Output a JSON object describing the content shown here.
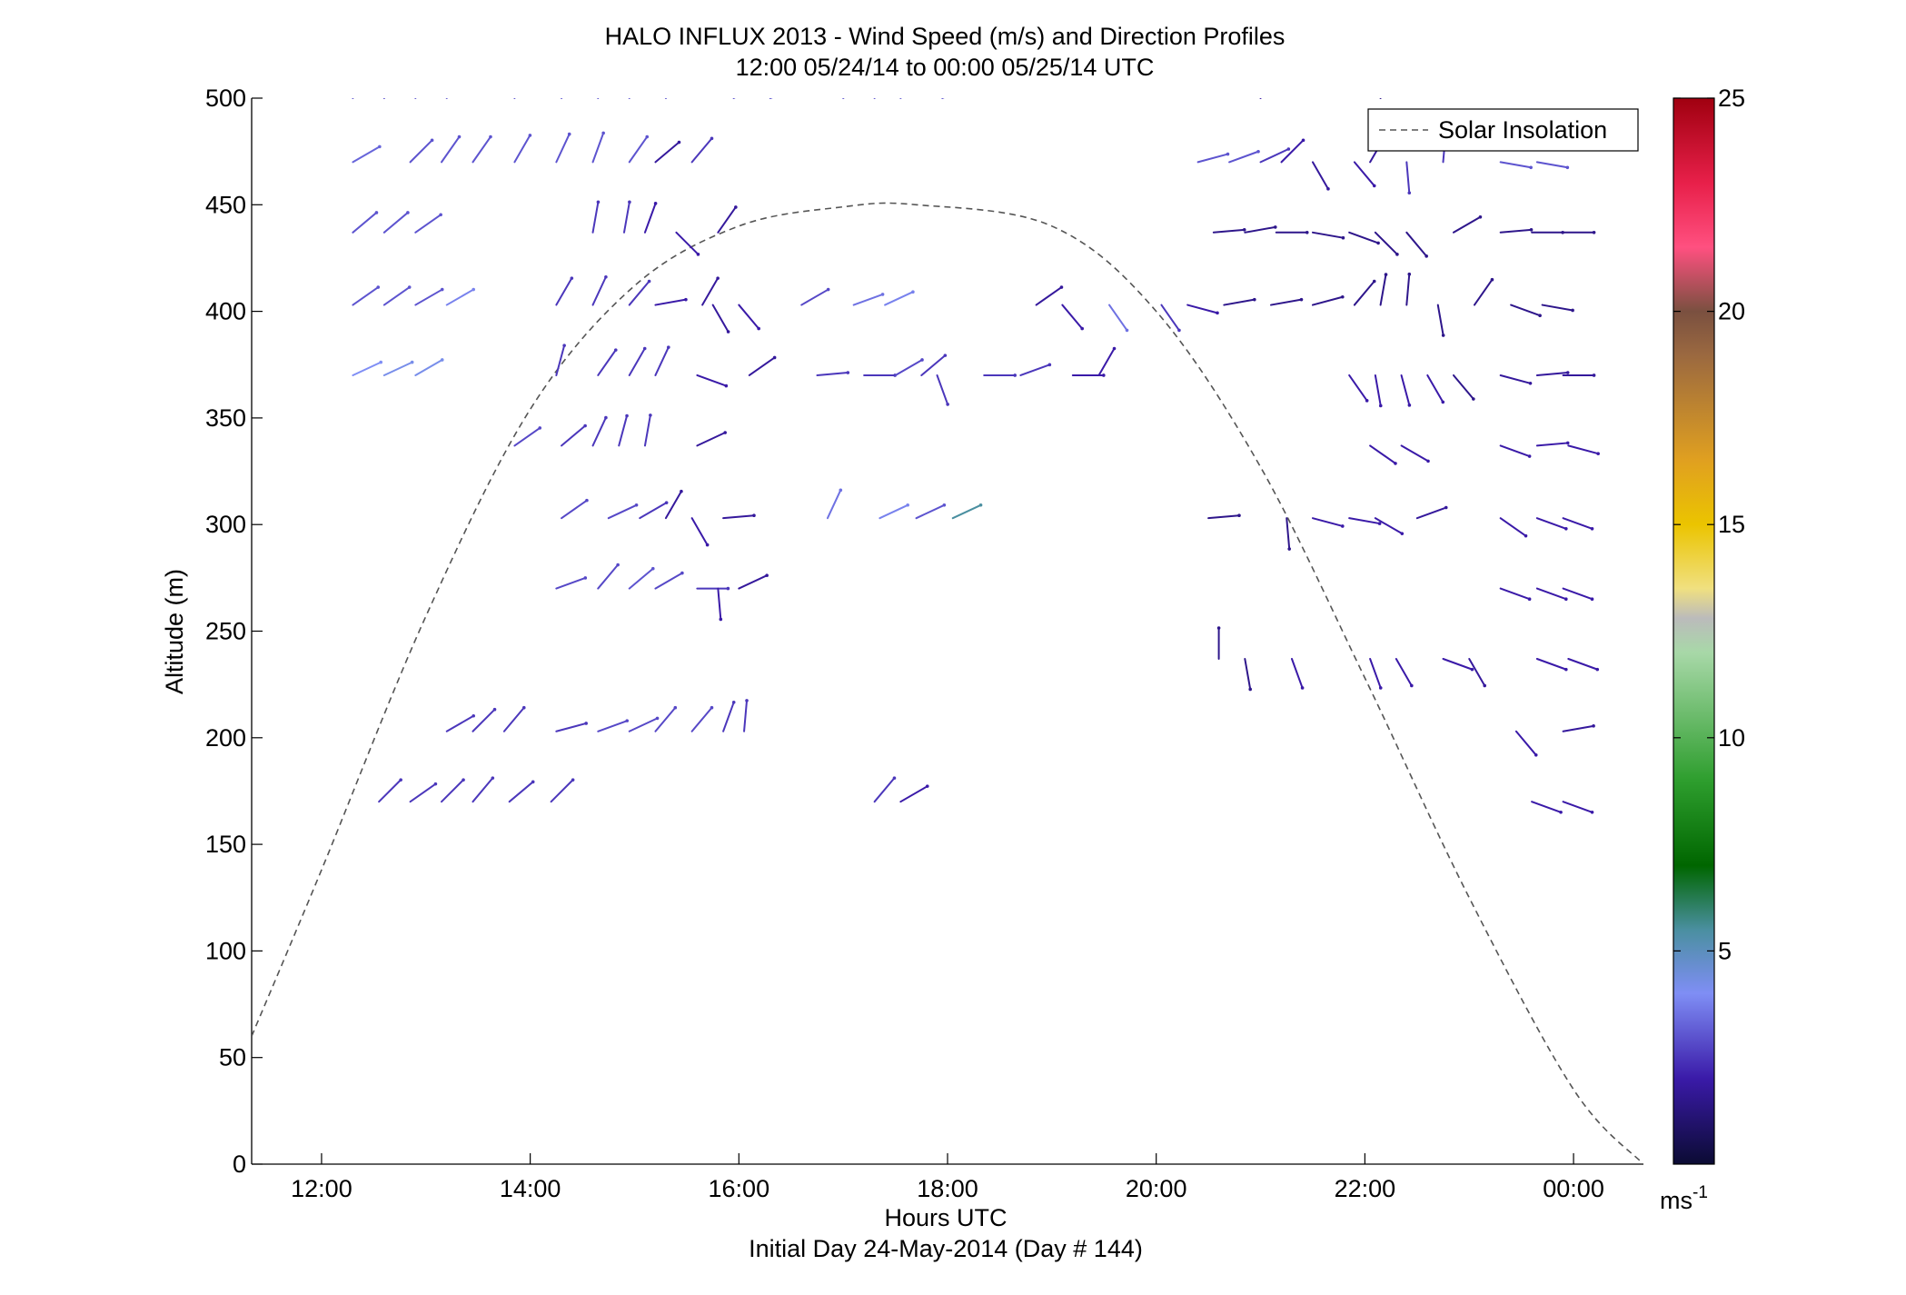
{
  "chart_data": {
    "type": "scatter",
    "title": "HALO INFLUX 2013 - Wind Speed (m/s) and Direction Profiles",
    "subtitle": "12:00 05/24/14 to 00:00 05/25/14  UTC",
    "xlabel": "Hours UTC",
    "xlabel2": "Initial Day 24-May-2014 (Day # 144)",
    "ylabel": "Altitude (m)",
    "xlim": [
      11.33,
      24.67
    ],
    "ylim": [
      0,
      500
    ],
    "x_ticks": [
      {
        "value": 12,
        "label": "12:00"
      },
      {
        "value": 14,
        "label": "14:00"
      },
      {
        "value": 16,
        "label": "16:00"
      },
      {
        "value": 18,
        "label": "18:00"
      },
      {
        "value": 20,
        "label": "20:00"
      },
      {
        "value": 22,
        "label": "22:00"
      },
      {
        "value": 24,
        "label": "00:00"
      }
    ],
    "y_ticks": [
      {
        "value": 0,
        "label": "0"
      },
      {
        "value": 50,
        "label": "50"
      },
      {
        "value": 100,
        "label": "100"
      },
      {
        "value": 150,
        "label": "150"
      },
      {
        "value": 200,
        "label": "200"
      },
      {
        "value": 250,
        "label": "250"
      },
      {
        "value": 300,
        "label": "300"
      },
      {
        "value": 350,
        "label": "350"
      },
      {
        "value": 400,
        "label": "400"
      },
      {
        "value": 450,
        "label": "450"
      },
      {
        "value": 500,
        "label": "500"
      }
    ],
    "legend": {
      "label": "Solar Insolation",
      "placement": "top-right"
    },
    "grid": false,
    "colorbar": {
      "range": [
        0,
        25
      ],
      "ticks": [
        {
          "value": 5,
          "label": "5"
        },
        {
          "value": 10,
          "label": "10"
        },
        {
          "value": 15,
          "label": "15"
        },
        {
          "value": 20,
          "label": "20"
        },
        {
          "value": 25,
          "label": "25"
        }
      ],
      "unit_label": "ms",
      "unit_exponent": "-1",
      "stops": [
        {
          "v": 0,
          "color": "#0b0b33"
        },
        {
          "v": 2,
          "color": "#3a1aa8"
        },
        {
          "v": 4,
          "color": "#7f8ef5"
        },
        {
          "v": 5.5,
          "color": "#4a8fa0"
        },
        {
          "v": 7,
          "color": "#006600"
        },
        {
          "v": 9,
          "color": "#2e9e2e"
        },
        {
          "v": 12,
          "color": "#a8d8a8"
        },
        {
          "v": 12.8,
          "color": "#bbbbbb"
        },
        {
          "v": 13.5,
          "color": "#f0e080"
        },
        {
          "v": 15,
          "color": "#ebc400"
        },
        {
          "v": 16.5,
          "color": "#e0a020"
        },
        {
          "v": 19,
          "color": "#9a6840"
        },
        {
          "v": 20,
          "color": "#7a5040"
        },
        {
          "v": 21.5,
          "color": "#ff5080"
        },
        {
          "v": 23,
          "color": "#e8204a"
        },
        {
          "v": 25,
          "color": "#a00010"
        }
      ]
    },
    "solar_insolation_curve": {
      "style": "dashed",
      "color": "#555555",
      "points": [
        [
          11.33,
          60
        ],
        [
          12.0,
          138
        ],
        [
          13.0,
          257
        ],
        [
          14.0,
          354
        ],
        [
          15.0,
          412
        ],
        [
          16.0,
          440
        ],
        [
          17.0,
          449
        ],
        [
          17.7,
          450
        ],
        [
          19.0,
          440
        ],
        [
          20.0,
          400
        ],
        [
          21.0,
          327
        ],
        [
          22.0,
          228
        ],
        [
          23.0,
          125
        ],
        [
          24.0,
          35
        ],
        [
          24.67,
          0
        ]
      ]
    },
    "wind_vectors": {
      "description_fields": [
        "hour",
        "altitude_m",
        "direction_deg",
        "speed_ms"
      ],
      "series": [
        [
          12.3,
          500,
          150,
          3.0
        ],
        [
          12.6,
          500,
          145,
          3.0
        ],
        [
          12.9,
          500,
          150,
          3.0
        ],
        [
          13.2,
          500,
          155,
          3.0
        ],
        [
          13.85,
          500,
          160,
          3.0
        ],
        [
          14.3,
          500,
          155,
          3.0
        ],
        [
          14.65,
          500,
          160,
          3.0
        ],
        [
          14.95,
          500,
          150,
          3.0
        ],
        [
          15.3,
          500,
          145,
          3.0
        ],
        [
          15.95,
          500,
          120,
          3.0
        ],
        [
          16.3,
          500,
          110,
          3.0
        ],
        [
          17.0,
          500,
          130,
          3.0
        ],
        [
          17.3,
          500,
          140,
          3.0
        ],
        [
          17.55,
          500,
          140,
          3.0
        ],
        [
          17.95,
          500,
          115,
          3.0
        ],
        [
          21.0,
          500,
          150,
          2.0
        ],
        [
          22.15,
          500,
          160,
          1.5
        ],
        [
          12.3,
          470,
          120,
          3.3
        ],
        [
          12.85,
          470,
          135,
          3.0
        ],
        [
          13.15,
          470,
          145,
          3.0
        ],
        [
          13.45,
          470,
          145,
          3.0
        ],
        [
          13.85,
          470,
          150,
          3.0
        ],
        [
          14.25,
          470,
          155,
          3.0
        ],
        [
          14.6,
          470,
          160,
          3.0
        ],
        [
          14.95,
          470,
          145,
          3.0
        ],
        [
          15.2,
          470,
          130,
          1.8
        ],
        [
          15.55,
          470,
          140,
          2.5
        ],
        [
          20.4,
          470,
          105,
          3.0
        ],
        [
          20.7,
          470,
          110,
          3.0
        ],
        [
          21.0,
          470,
          115,
          2.5
        ],
        [
          21.2,
          470,
          135,
          2.0
        ],
        [
          21.5,
          470,
          30,
          1.8
        ],
        [
          21.9,
          470,
          40,
          2.0
        ],
        [
          22.05,
          470,
          150,
          1.8
        ],
        [
          22.4,
          470,
          5,
          2.5
        ],
        [
          22.75,
          470,
          175,
          2.5
        ],
        [
          23.3,
          470,
          80,
          3.0
        ],
        [
          23.65,
          470,
          80,
          3.0
        ],
        [
          12.3,
          437,
          130,
          3.0
        ],
        [
          12.6,
          437,
          130,
          3.0
        ],
        [
          12.9,
          437,
          125,
          3.0
        ],
        [
          14.6,
          437,
          170,
          2.5
        ],
        [
          14.9,
          437,
          170,
          2.5
        ],
        [
          15.1,
          437,
          160,
          2.0
        ],
        [
          15.4,
          437,
          45,
          2.0
        ],
        [
          15.8,
          437,
          145,
          1.8
        ],
        [
          20.55,
          437,
          95,
          1.5
        ],
        [
          20.85,
          437,
          100,
          1.5
        ],
        [
          21.15,
          437,
          90,
          1.5
        ],
        [
          21.5,
          437,
          80,
          1.5
        ],
        [
          21.85,
          437,
          70,
          1.5
        ],
        [
          22.1,
          437,
          45,
          1.5
        ],
        [
          22.4,
          437,
          40,
          1.5
        ],
        [
          22.85,
          437,
          120,
          1.5
        ],
        [
          23.3,
          437,
          95,
          1.5
        ],
        [
          23.6,
          437,
          90,
          1.5
        ],
        [
          23.9,
          437,
          90,
          1.5
        ],
        [
          12.3,
          403,
          125,
          3.0
        ],
        [
          12.6,
          403,
          125,
          3.0
        ],
        [
          12.9,
          403,
          120,
          3.0
        ],
        [
          13.2,
          403,
          120,
          3.8
        ],
        [
          14.25,
          403,
          150,
          2.5
        ],
        [
          14.6,
          403,
          155,
          2.5
        ],
        [
          14.95,
          403,
          140,
          2.5
        ],
        [
          15.2,
          403,
          100,
          2.0
        ],
        [
          15.65,
          403,
          150,
          1.8
        ],
        [
          15.75,
          403,
          30,
          1.8
        ],
        [
          16.0,
          403,
          40,
          2.0
        ],
        [
          16.6,
          403,
          120,
          2.8
        ],
        [
          17.1,
          403,
          110,
          3.5
        ],
        [
          17.4,
          403,
          115,
          3.8
        ],
        [
          18.85,
          403,
          125,
          1.8
        ],
        [
          19.1,
          403,
          40,
          2.0
        ],
        [
          19.55,
          403,
          35,
          3.5
        ],
        [
          20.05,
          403,
          35,
          2.5
        ],
        [
          20.3,
          403,
          75,
          2.0
        ],
        [
          20.65,
          403,
          100,
          1.5
        ],
        [
          21.1,
          403,
          100,
          1.5
        ],
        [
          21.5,
          403,
          105,
          1.5
        ],
        [
          21.9,
          403,
          140,
          1.5
        ],
        [
          22.15,
          403,
          170,
          1.5
        ],
        [
          22.4,
          403,
          175,
          1.5
        ],
        [
          22.7,
          403,
          10,
          1.5
        ],
        [
          23.05,
          403,
          145,
          1.5
        ],
        [
          23.4,
          403,
          70,
          1.5
        ],
        [
          23.7,
          403,
          80,
          1.5
        ],
        [
          12.3,
          370,
          115,
          4.0
        ],
        [
          12.6,
          370,
          115,
          4.2
        ],
        [
          12.9,
          370,
          120,
          4.2
        ],
        [
          14.25,
          370,
          165,
          2.5
        ],
        [
          14.65,
          370,
          145,
          2.5
        ],
        [
          14.95,
          370,
          150,
          2.5
        ],
        [
          15.2,
          370,
          155,
          2.5
        ],
        [
          15.6,
          370,
          70,
          2.0
        ],
        [
          16.1,
          370,
          125,
          1.8
        ],
        [
          16.75,
          370,
          95,
          2.5
        ],
        [
          17.2,
          370,
          90,
          2.5
        ],
        [
          17.5,
          370,
          120,
          2.8
        ],
        [
          17.75,
          370,
          130,
          2.5
        ],
        [
          17.9,
          370,
          20,
          2.5
        ],
        [
          18.35,
          370,
          90,
          2.5
        ],
        [
          18.7,
          370,
          110,
          2.5
        ],
        [
          19.2,
          370,
          90,
          2.0
        ],
        [
          19.45,
          370,
          150,
          2.0
        ],
        [
          21.85,
          370,
          35,
          2.0
        ],
        [
          22.1,
          370,
          10,
          2.0
        ],
        [
          22.35,
          370,
          15,
          2.0
        ],
        [
          22.6,
          370,
          30,
          2.0
        ],
        [
          22.85,
          370,
          40,
          1.5
        ],
        [
          23.3,
          370,
          75,
          1.8
        ],
        [
          23.65,
          370,
          95,
          1.8
        ],
        [
          23.9,
          370,
          90,
          1.8
        ],
        [
          13.85,
          337,
          125,
          2.8
        ],
        [
          14.3,
          337,
          130,
          2.5
        ],
        [
          14.6,
          337,
          155,
          2.5
        ],
        [
          14.85,
          337,
          165,
          2.5
        ],
        [
          15.1,
          337,
          170,
          2.5
        ],
        [
          15.6,
          337,
          115,
          1.8
        ],
        [
          22.05,
          337,
          55,
          2.0
        ],
        [
          22.35,
          337,
          60,
          2.0
        ],
        [
          23.3,
          337,
          70,
          2.0
        ],
        [
          23.65,
          337,
          95,
          2.0
        ],
        [
          23.95,
          337,
          75,
          2.0
        ],
        [
          14.3,
          303,
          125,
          2.8
        ],
        [
          14.75,
          303,
          115,
          2.8
        ],
        [
          15.05,
          303,
          120,
          2.5
        ],
        [
          15.3,
          303,
          150,
          1.8
        ],
        [
          15.55,
          303,
          30,
          2.0
        ],
        [
          15.85,
          303,
          95,
          1.8
        ],
        [
          16.85,
          303,
          155,
          3.5
        ],
        [
          17.35,
          303,
          115,
          3.8
        ],
        [
          17.7,
          303,
          115,
          3.0
        ],
        [
          18.05,
          303,
          115,
          5.5
        ],
        [
          20.5,
          303,
          95,
          1.5
        ],
        [
          21.25,
          303,
          5,
          1.5
        ],
        [
          21.5,
          303,
          75,
          2.0
        ],
        [
          21.85,
          303,
          80,
          2.0
        ],
        [
          22.1,
          303,
          60,
          2.0
        ],
        [
          22.5,
          303,
          110,
          1.8
        ],
        [
          23.3,
          303,
          55,
          2.0
        ],
        [
          23.65,
          303,
          70,
          2.0
        ],
        [
          23.9,
          303,
          70,
          2.0
        ],
        [
          14.25,
          270,
          110,
          2.8
        ],
        [
          14.65,
          270,
          140,
          2.8
        ],
        [
          14.95,
          270,
          130,
          3.0
        ],
        [
          15.2,
          270,
          120,
          2.8
        ],
        [
          15.6,
          270,
          90,
          2.5
        ],
        [
          15.8,
          270,
          5,
          2.0
        ],
        [
          16.0,
          270,
          115,
          1.8
        ],
        [
          23.3,
          270,
          70,
          2.0
        ],
        [
          23.65,
          270,
          70,
          2.0
        ],
        [
          23.9,
          270,
          70,
          2.0
        ],
        [
          20.6,
          237,
          180,
          1.5
        ],
        [
          20.85,
          237,
          10,
          1.5
        ],
        [
          21.3,
          237,
          20,
          2.0
        ],
        [
          22.05,
          237,
          20,
          2.0
        ],
        [
          22.3,
          237,
          30,
          2.0
        ],
        [
          22.75,
          237,
          70,
          2.0
        ],
        [
          23.0,
          237,
          30,
          1.8
        ],
        [
          23.65,
          237,
          70,
          2.0
        ],
        [
          23.95,
          237,
          70,
          2.0
        ],
        [
          13.2,
          203,
          120,
          2.5
        ],
        [
          13.45,
          203,
          135,
          2.5
        ],
        [
          13.75,
          203,
          140,
          2.5
        ],
        [
          14.25,
          203,
          105,
          2.5
        ],
        [
          14.65,
          203,
          110,
          2.8
        ],
        [
          14.95,
          203,
          115,
          2.8
        ],
        [
          15.2,
          203,
          140,
          2.8
        ],
        [
          15.55,
          203,
          140,
          2.8
        ],
        [
          15.85,
          203,
          160,
          2.5
        ],
        [
          16.05,
          203,
          175,
          2.5
        ],
        [
          23.45,
          203,
          40,
          2.0
        ],
        [
          23.9,
          203,
          100,
          1.8
        ],
        [
          12.55,
          170,
          135,
          2.5
        ],
        [
          12.85,
          170,
          125,
          2.5
        ],
        [
          13.15,
          170,
          135,
          2.5
        ],
        [
          13.45,
          170,
          140,
          2.5
        ],
        [
          13.8,
          170,
          130,
          2.5
        ],
        [
          14.2,
          170,
          135,
          2.5
        ],
        [
          17.3,
          170,
          140,
          2.5
        ],
        [
          17.55,
          170,
          120,
          2.0
        ],
        [
          23.6,
          170,
          70,
          2.0
        ],
        [
          23.9,
          170,
          70,
          2.0
        ]
      ]
    }
  }
}
